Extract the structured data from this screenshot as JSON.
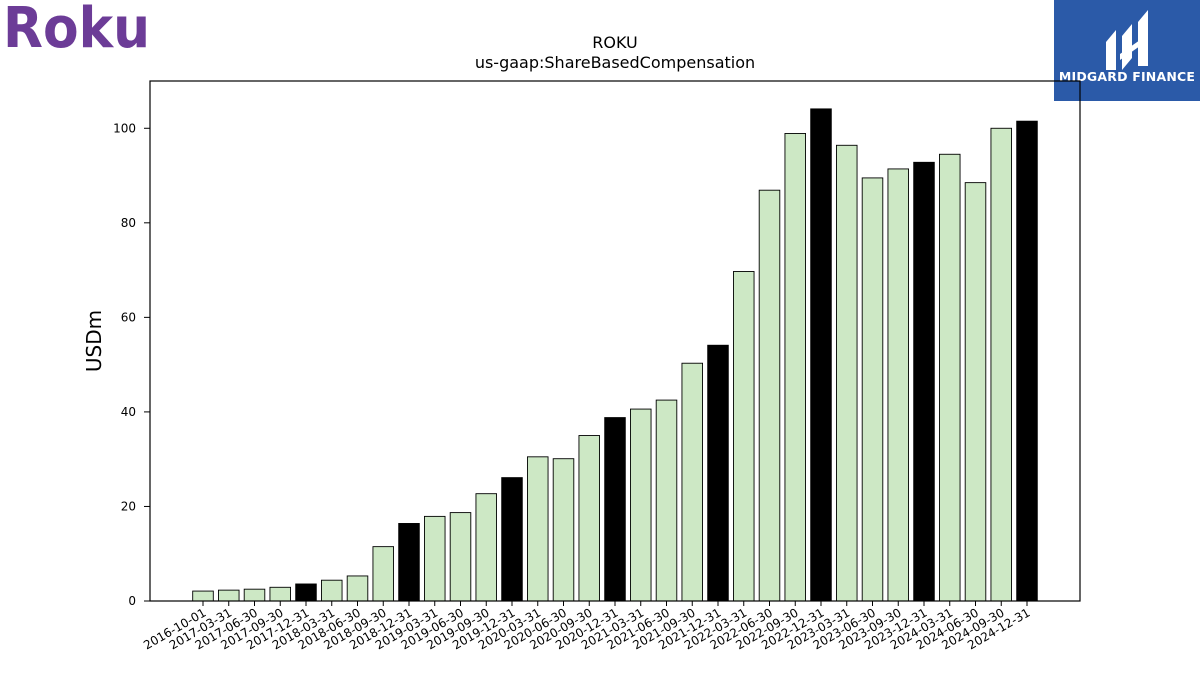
{
  "logos": {
    "left_brand": "Roku",
    "left_color": "#6c3c97",
    "right_brand": "MIDGARD FINANCE",
    "right_bg": "#2b5aa8"
  },
  "chart_data": {
    "type": "bar",
    "title": "ROKU",
    "subtitle": "us-gaap:ShareBasedCompensation",
    "xlabel": "",
    "ylabel": "USDm",
    "ylim": [
      0,
      110
    ],
    "yticks": [
      0,
      20,
      40,
      60,
      80,
      100
    ],
    "grid": false,
    "colors": {
      "quarter": "#cde8c5",
      "year_end": "#000000",
      "edge": "#000000"
    },
    "categories": [
      "2016-10-01",
      "2017-03-31",
      "2017-06-30",
      "2017-09-30",
      "2017-12-31",
      "2018-03-31",
      "2018-06-30",
      "2018-09-30",
      "2018-12-31",
      "2019-03-31",
      "2019-06-30",
      "2019-09-30",
      "2019-12-31",
      "2020-03-31",
      "2020-06-30",
      "2020-09-30",
      "2020-12-31",
      "2021-03-31",
      "2021-06-30",
      "2021-09-30",
      "2021-12-31",
      "2022-03-31",
      "2022-06-30",
      "2022-09-30",
      "2022-12-31",
      "2023-03-31",
      "2023-06-30",
      "2023-09-30",
      "2023-12-31",
      "2024-03-31",
      "2024-06-30",
      "2024-09-30",
      "2024-12-31"
    ],
    "values": [
      2.1,
      2.3,
      2.5,
      2.9,
      3.6,
      4.4,
      5.3,
      11.5,
      16.4,
      17.9,
      18.7,
      22.7,
      26.1,
      30.5,
      30.1,
      35.0,
      38.8,
      40.6,
      42.5,
      50.3,
      54.1,
      69.7,
      86.9,
      98.9,
      104.1,
      96.4,
      89.5,
      91.4,
      92.8,
      94.5,
      88.5,
      100.0,
      101.5
    ],
    "highlight": [
      false,
      false,
      false,
      false,
      true,
      false,
      false,
      false,
      true,
      false,
      false,
      false,
      true,
      false,
      false,
      false,
      true,
      false,
      false,
      false,
      true,
      false,
      false,
      false,
      true,
      false,
      false,
      false,
      true,
      false,
      false,
      false,
      true
    ]
  }
}
